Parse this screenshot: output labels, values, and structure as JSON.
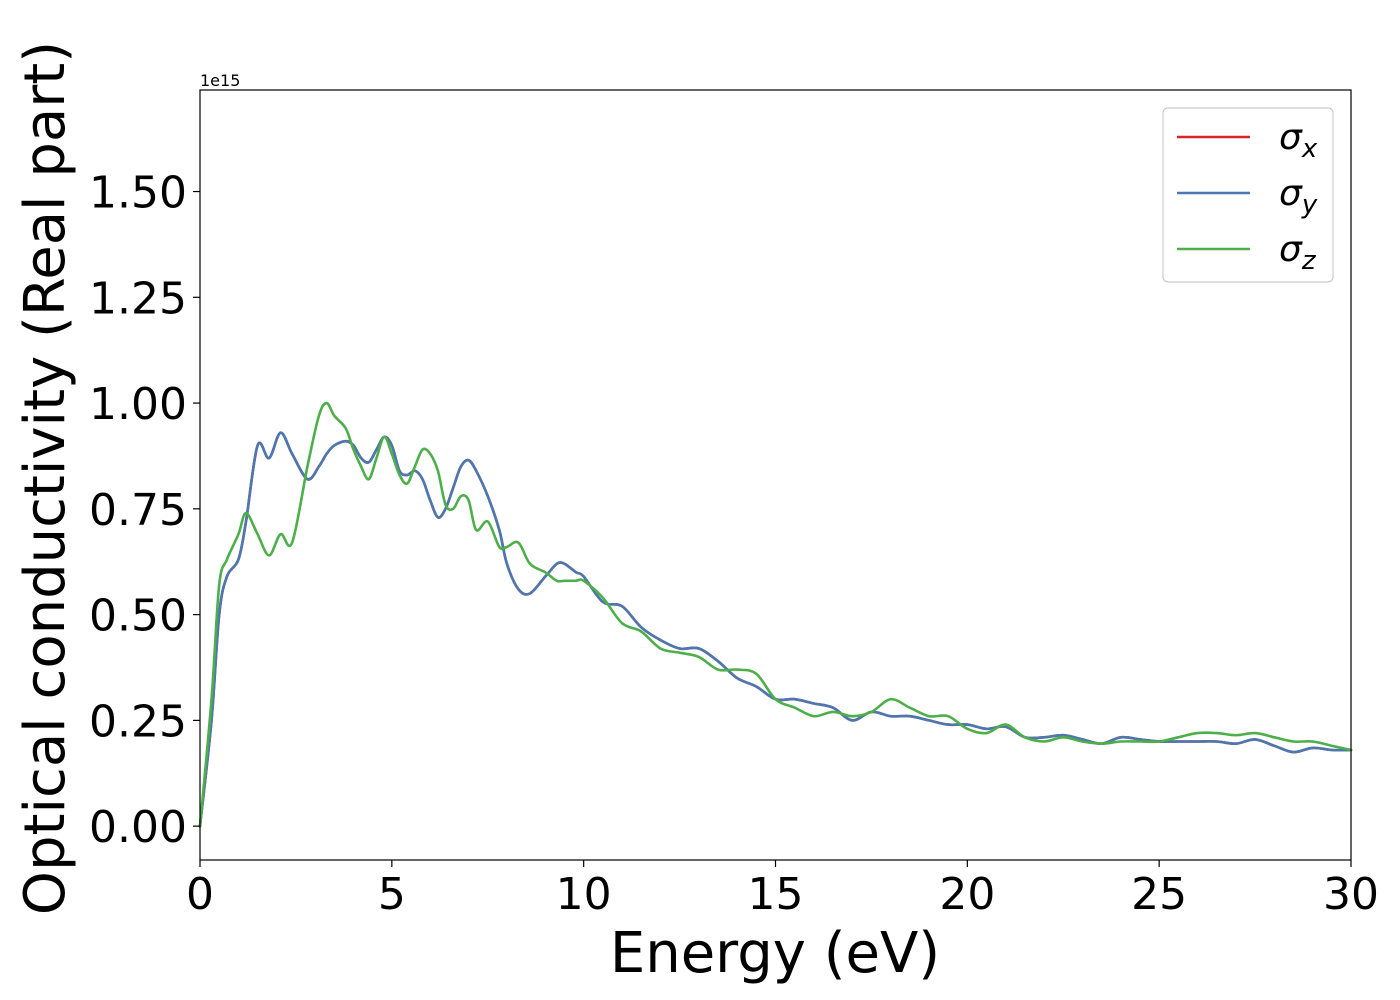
{
  "chart_data": {
    "type": "line",
    "title": "",
    "xlabel": "Energy (eV)",
    "ylabel": "Optical conductivity (Real part)",
    "y_offset_label": "1e15",
    "xlim": [
      0,
      30
    ],
    "ylim": [
      -0.08,
      1.74
    ],
    "x_ticks": [
      0,
      5,
      10,
      15,
      20,
      25,
      30
    ],
    "x_tick_labels": [
      "0",
      "5",
      "10",
      "15",
      "20",
      "25",
      "30"
    ],
    "y_ticks": [
      0.0,
      0.25,
      0.5,
      0.75,
      1.0,
      1.25,
      1.5
    ],
    "y_tick_labels": [
      "0.00",
      "0.25",
      "0.50",
      "0.75",
      "1.00",
      "1.25",
      "1.50"
    ],
    "grid": false,
    "legend_position": "top-right",
    "x": [
      0,
      0.3,
      0.5,
      0.7,
      1.0,
      1.2,
      1.5,
      1.8,
      2.1,
      2.4,
      2.8,
      3.1,
      3.3,
      3.5,
      3.8,
      4.0,
      4.2,
      4.4,
      4.6,
      4.8,
      5.0,
      5.2,
      5.4,
      5.6,
      5.8,
      6.0,
      6.2,
      6.4,
      6.6,
      6.8,
      7.0,
      7.2,
      7.5,
      7.8,
      8.0,
      8.3,
      8.6,
      9.0,
      9.3,
      9.5,
      9.8,
      10.0,
      10.5,
      11.0,
      11.5,
      12.0,
      12.5,
      13.0,
      13.5,
      14.0,
      14.5,
      15.0,
      15.5,
      16.0,
      16.5,
      17.0,
      17.5,
      18.0,
      18.5,
      19.0,
      19.5,
      20.0,
      20.5,
      21.0,
      21.5,
      22.0,
      22.5,
      23.0,
      23.5,
      24.0,
      24.5,
      25.0,
      25.5,
      26.0,
      26.5,
      27.0,
      27.5,
      28.0,
      28.5,
      29.0,
      29.5,
      30.0
    ],
    "series": [
      {
        "name": "σx",
        "label_base": "σ",
        "label_sub": "x",
        "color": "#d62728",
        "values": [
          0.0,
          0.25,
          0.5,
          0.59,
          0.63,
          0.72,
          0.9,
          0.87,
          0.93,
          0.88,
          0.82,
          0.85,
          0.88,
          0.9,
          0.91,
          0.9,
          0.87,
          0.86,
          0.89,
          0.92,
          0.9,
          0.84,
          0.83,
          0.84,
          0.82,
          0.77,
          0.73,
          0.75,
          0.8,
          0.85,
          0.865,
          0.84,
          0.78,
          0.7,
          0.62,
          0.56,
          0.55,
          0.59,
          0.62,
          0.62,
          0.6,
          0.59,
          0.53,
          0.52,
          0.47,
          0.44,
          0.42,
          0.42,
          0.39,
          0.35,
          0.33,
          0.3,
          0.3,
          0.29,
          0.28,
          0.25,
          0.27,
          0.26,
          0.26,
          0.25,
          0.24,
          0.24,
          0.23,
          0.235,
          0.21,
          0.21,
          0.215,
          0.205,
          0.195,
          0.21,
          0.205,
          0.2,
          0.2,
          0.2,
          0.2,
          0.195,
          0.205,
          0.19,
          0.175,
          0.185,
          0.18,
          0.18
        ]
      },
      {
        "name": "σy",
        "label_base": "σ",
        "label_sub": "y",
        "color": "#4a78b0",
        "values": [
          0.0,
          0.25,
          0.5,
          0.59,
          0.63,
          0.72,
          0.9,
          0.87,
          0.93,
          0.88,
          0.82,
          0.85,
          0.88,
          0.9,
          0.91,
          0.9,
          0.87,
          0.86,
          0.89,
          0.92,
          0.9,
          0.84,
          0.83,
          0.84,
          0.82,
          0.77,
          0.73,
          0.75,
          0.8,
          0.85,
          0.865,
          0.84,
          0.78,
          0.7,
          0.62,
          0.56,
          0.55,
          0.59,
          0.62,
          0.62,
          0.6,
          0.59,
          0.53,
          0.52,
          0.47,
          0.44,
          0.42,
          0.42,
          0.39,
          0.35,
          0.33,
          0.3,
          0.3,
          0.29,
          0.28,
          0.25,
          0.27,
          0.26,
          0.26,
          0.25,
          0.24,
          0.24,
          0.23,
          0.235,
          0.21,
          0.21,
          0.215,
          0.205,
          0.195,
          0.21,
          0.205,
          0.2,
          0.2,
          0.2,
          0.2,
          0.195,
          0.205,
          0.19,
          0.175,
          0.185,
          0.18,
          0.18
        ]
      },
      {
        "name": "σz",
        "label_base": "σ",
        "label_sub": "z",
        "color": "#4daf4a",
        "values": [
          0.0,
          0.3,
          0.57,
          0.63,
          0.69,
          0.74,
          0.69,
          0.64,
          0.69,
          0.67,
          0.85,
          0.97,
          1.0,
          0.97,
          0.94,
          0.89,
          0.85,
          0.82,
          0.87,
          0.92,
          0.88,
          0.83,
          0.81,
          0.85,
          0.89,
          0.88,
          0.84,
          0.76,
          0.75,
          0.78,
          0.77,
          0.7,
          0.72,
          0.66,
          0.66,
          0.67,
          0.62,
          0.6,
          0.58,
          0.58,
          0.58,
          0.58,
          0.54,
          0.48,
          0.46,
          0.42,
          0.41,
          0.4,
          0.37,
          0.37,
          0.36,
          0.3,
          0.28,
          0.26,
          0.27,
          0.26,
          0.27,
          0.3,
          0.28,
          0.26,
          0.26,
          0.23,
          0.22,
          0.24,
          0.21,
          0.2,
          0.21,
          0.2,
          0.195,
          0.2,
          0.2,
          0.2,
          0.21,
          0.22,
          0.22,
          0.215,
          0.22,
          0.21,
          0.2,
          0.2,
          0.19,
          0.18
        ]
      }
    ]
  }
}
